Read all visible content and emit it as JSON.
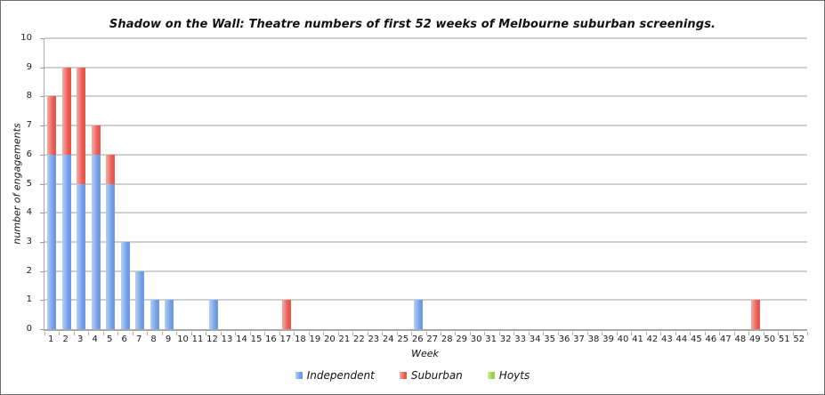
{
  "chart_data": {
    "type": "bar",
    "stacked": true,
    "title": "Shadow on the Wall: Theatre numbers of first 52 weeks of Melbourne suburban screenings.",
    "xlabel": "Week",
    "ylabel": "number of engagements",
    "ylim": [
      0,
      10
    ],
    "ytick_step": 1,
    "grid": true,
    "legend_position": "bottom",
    "categories": [
      "1",
      "2",
      "3",
      "4",
      "5",
      "6",
      "7",
      "8",
      "9",
      "10",
      "11",
      "12",
      "13",
      "14",
      "15",
      "16",
      "17",
      "18",
      "19",
      "20",
      "21",
      "22",
      "23",
      "24",
      "25",
      "26",
      "27",
      "28",
      "29",
      "30",
      "31",
      "32",
      "33",
      "34",
      "35",
      "36",
      "37",
      "38",
      "39",
      "40",
      "41",
      "42",
      "43",
      "44",
      "45",
      "46",
      "47",
      "48",
      "49",
      "50",
      "51",
      "52"
    ],
    "series": [
      {
        "name": "Independent",
        "color": "#6d9ce6",
        "color_light": "#b6d0f7",
        "values": [
          6,
          6,
          5,
          6,
          5,
          3,
          2,
          1,
          1,
          0,
          0,
          1,
          0,
          0,
          0,
          0,
          0,
          0,
          0,
          0,
          0,
          0,
          0,
          0,
          0,
          1,
          0,
          0,
          0,
          0,
          0,
          0,
          0,
          0,
          0,
          0,
          0,
          0,
          0,
          0,
          0,
          0,
          0,
          0,
          0,
          0,
          0,
          0,
          0,
          0,
          0,
          0
        ]
      },
      {
        "name": "Suburban",
        "color": "#e9564c",
        "color_light": "#f6aca4",
        "values": [
          2,
          3,
          4,
          1,
          1,
          0,
          0,
          0,
          0,
          0,
          0,
          0,
          0,
          0,
          0,
          0,
          1,
          0,
          0,
          0,
          0,
          0,
          0,
          0,
          0,
          0,
          0,
          0,
          0,
          0,
          0,
          0,
          0,
          0,
          0,
          0,
          0,
          0,
          0,
          0,
          0,
          0,
          0,
          0,
          0,
          0,
          0,
          0,
          1,
          0,
          0,
          0
        ]
      },
      {
        "name": "Hoyts",
        "color": "#9acd44",
        "color_light": "#d3ec9f",
        "values": [
          0,
          0,
          0,
          0,
          0,
          0,
          0,
          0,
          0,
          0,
          0,
          0,
          0,
          0,
          0,
          0,
          0,
          0,
          0,
          0,
          0,
          0,
          0,
          0,
          0,
          0,
          0,
          0,
          0,
          0,
          0,
          0,
          0,
          0,
          0,
          0,
          0,
          0,
          0,
          0,
          0,
          0,
          0,
          0,
          0,
          0,
          0,
          0,
          0,
          0,
          0,
          0
        ]
      }
    ]
  }
}
